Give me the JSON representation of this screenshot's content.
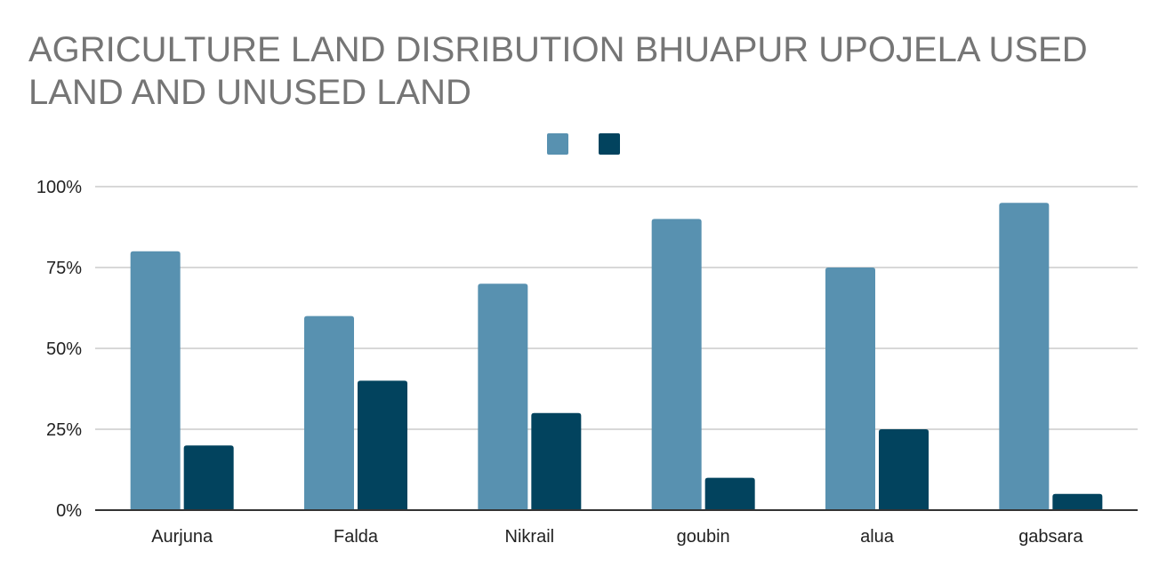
{
  "chart_data": {
    "type": "bar",
    "title": "AGRICULTURE LAND DISRIBUTION BHUAPUR UPOJELA  USED LAND AND UNUSED LAND",
    "xlabel": "",
    "ylabel": "",
    "categories": [
      "Aurjuna",
      "Falda",
      "Nikrail",
      "goubin",
      "alua",
      "gabsara"
    ],
    "series": [
      {
        "values": [
          80,
          60,
          70,
          90,
          75,
          95
        ],
        "color": "#5891b0"
      },
      {
        "values": [
          20,
          40,
          30,
          10,
          25,
          5
        ],
        "color": "#02435e"
      }
    ],
    "ylim": [
      0,
      100
    ],
    "yticks": [
      0,
      25,
      50,
      75,
      100
    ],
    "ytick_labels": [
      "0%",
      "25%",
      "50%",
      "75%",
      "100%"
    ],
    "grid": true,
    "legend_position": "top-center"
  }
}
